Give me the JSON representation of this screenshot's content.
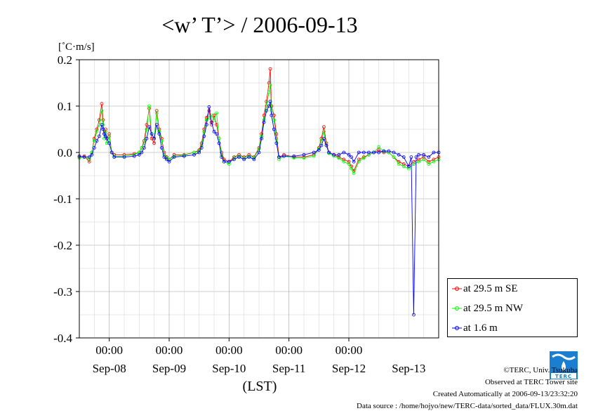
{
  "chart_data": {
    "type": "line",
    "title": "<w’ T’> / 2006-09-13",
    "ylabel": "[˚C·m/s]",
    "xlabel": "(LST)",
    "ylim": [
      -0.4,
      0.2
    ],
    "yticks": [
      -0.4,
      -0.3,
      -0.2,
      -0.1,
      0.0,
      0.1,
      0.2
    ],
    "ytick_labels": [
      "-0.4",
      "-0.3",
      "-0.2",
      "-0.1",
      "0.0",
      "0.1",
      "0.2"
    ],
    "xlim": [
      0,
      144
    ],
    "x_units": "hours since 2006-09-07 12:00 LST",
    "xticks": [
      12,
      36,
      60,
      84,
      108
    ],
    "xtick_labels": [
      "00:00",
      "00:00",
      "00:00",
      "00:00",
      "00:00"
    ],
    "date_labels": [
      {
        "x": 12,
        "label": "Sep-08"
      },
      {
        "x": 36,
        "label": "Sep-09"
      },
      {
        "x": 60,
        "label": "Sep-10"
      },
      {
        "x": 84,
        "label": "Sep-11"
      },
      {
        "x": 108,
        "label": "Sep-12"
      },
      {
        "x": 132,
        "label": "Sep-13"
      }
    ],
    "grid": true,
    "legend_position": "right-bottom",
    "series": [
      {
        "name": "at 29.5 m SE",
        "color": "#ff0000",
        "points": [
          [
            0,
            -0.01
          ],
          [
            2,
            -0.008
          ],
          [
            4,
            -0.02
          ],
          [
            5,
            0.0
          ],
          [
            6,
            0.03
          ],
          [
            7,
            0.05
          ],
          [
            8,
            0.07
          ],
          [
            9,
            0.105
          ],
          [
            9.5,
            0.07
          ],
          [
            10,
            0.04
          ],
          [
            10.5,
            0.05
          ],
          [
            11,
            0.03
          ],
          [
            12,
            0.04
          ],
          [
            13,
            0.0
          ],
          [
            14,
            -0.005
          ],
          [
            18,
            -0.005
          ],
          [
            22,
            -0.003
          ],
          [
            24,
            0.0
          ],
          [
            25,
            0.01
          ],
          [
            26,
            0.025
          ],
          [
            27,
            0.06
          ],
          [
            28,
            0.095
          ],
          [
            29,
            0.03
          ],
          [
            30,
            0.02
          ],
          [
            31,
            0.09
          ],
          [
            32,
            0.05
          ],
          [
            33,
            0.03
          ],
          [
            34,
            0.0
          ],
          [
            35,
            -0.01
          ],
          [
            36,
            -0.015
          ],
          [
            38,
            -0.005
          ],
          [
            42,
            -0.005
          ],
          [
            46,
            0.0
          ],
          [
            48,
            0.005
          ],
          [
            49,
            0.02
          ],
          [
            50,
            0.05
          ],
          [
            51,
            0.075
          ],
          [
            52,
            0.09
          ],
          [
            53,
            0.06
          ],
          [
            54,
            0.08
          ],
          [
            55,
            0.06
          ],
          [
            56,
            0.03
          ],
          [
            57,
            0.0
          ],
          [
            58,
            -0.015
          ],
          [
            60,
            -0.02
          ],
          [
            62,
            -0.01
          ],
          [
            64,
            -0.005
          ],
          [
            66,
            -0.01
          ],
          [
            68,
            -0.005
          ],
          [
            70,
            -0.01
          ],
          [
            72,
            0.01
          ],
          [
            73,
            0.04
          ],
          [
            74,
            0.08
          ],
          [
            75,
            0.11
          ],
          [
            76,
            0.15
          ],
          [
            76.5,
            0.18
          ],
          [
            77,
            0.1
          ],
          [
            78,
            0.08
          ],
          [
            79,
            0.04
          ],
          [
            80,
            -0.01
          ],
          [
            82,
            -0.005
          ],
          [
            86,
            -0.01
          ],
          [
            90,
            -0.01
          ],
          [
            94,
            -0.005
          ],
          [
            96,
            0.01
          ],
          [
            97,
            0.03
          ],
          [
            98,
            0.055
          ],
          [
            99,
            0.02
          ],
          [
            100,
            0.0
          ],
          [
            102,
            -0.005
          ],
          [
            104,
            -0.01
          ],
          [
            106,
            -0.015
          ],
          [
            108,
            -0.02
          ],
          [
            109,
            -0.03
          ],
          [
            110,
            -0.04
          ],
          [
            112,
            -0.015
          ],
          [
            114,
            -0.01
          ],
          [
            116,
            -0.005
          ],
          [
            118,
            0.0
          ],
          [
            120,
            0.005
          ],
          [
            122,
            0.0
          ],
          [
            124,
            0.0
          ],
          [
            126,
            -0.01
          ],
          [
            128,
            -0.02
          ],
          [
            130,
            -0.025
          ],
          [
            132,
            -0.03
          ],
          [
            134,
            -0.02
          ],
          [
            136,
            -0.015
          ],
          [
            138,
            -0.01
          ],
          [
            140,
            -0.02
          ],
          [
            142,
            -0.015
          ],
          [
            144,
            -0.01
          ]
        ]
      },
      {
        "name": "at 29.5 m NW",
        "color": "#00ff00",
        "points": [
          [
            0,
            -0.012
          ],
          [
            2,
            -0.01
          ],
          [
            4,
            -0.015
          ],
          [
            5,
            0.0
          ],
          [
            6,
            0.025
          ],
          [
            7,
            0.045
          ],
          [
            8,
            0.06
          ],
          [
            9,
            0.09
          ],
          [
            9.5,
            0.06
          ],
          [
            10,
            0.03
          ],
          [
            10.5,
            0.045
          ],
          [
            11,
            0.02
          ],
          [
            12,
            0.035
          ],
          [
            13,
            0.0
          ],
          [
            14,
            -0.008
          ],
          [
            18,
            -0.008
          ],
          [
            22,
            -0.005
          ],
          [
            24,
            0.0
          ],
          [
            25,
            0.01
          ],
          [
            26,
            0.02
          ],
          [
            27,
            0.05
          ],
          [
            28,
            0.1
          ],
          [
            29,
            0.04
          ],
          [
            30,
            0.03
          ],
          [
            31,
            0.085
          ],
          [
            32,
            0.045
          ],
          [
            33,
            0.025
          ],
          [
            34,
            -0.005
          ],
          [
            35,
            -0.012
          ],
          [
            36,
            -0.015
          ],
          [
            38,
            -0.008
          ],
          [
            42,
            -0.006
          ],
          [
            46,
            0.0
          ],
          [
            48,
            0.003
          ],
          [
            49,
            0.015
          ],
          [
            50,
            0.045
          ],
          [
            51,
            0.07
          ],
          [
            52,
            0.075
          ],
          [
            53,
            0.08
          ],
          [
            54,
            0.07
          ],
          [
            55,
            0.085
          ],
          [
            56,
            0.03
          ],
          [
            57,
            -0.005
          ],
          [
            58,
            -0.02
          ],
          [
            60,
            -0.025
          ],
          [
            62,
            -0.012
          ],
          [
            64,
            -0.008
          ],
          [
            66,
            -0.012
          ],
          [
            68,
            -0.008
          ],
          [
            70,
            -0.012
          ],
          [
            72,
            0.008
          ],
          [
            73,
            0.035
          ],
          [
            74,
            0.07
          ],
          [
            75,
            0.1
          ],
          [
            76,
            0.13
          ],
          [
            76.5,
            0.145
          ],
          [
            77,
            0.09
          ],
          [
            78,
            0.07
          ],
          [
            79,
            0.03
          ],
          [
            80,
            -0.015
          ],
          [
            82,
            -0.008
          ],
          [
            86,
            -0.012
          ],
          [
            90,
            -0.012
          ],
          [
            94,
            -0.008
          ],
          [
            96,
            0.008
          ],
          [
            97,
            0.025
          ],
          [
            98,
            0.045
          ],
          [
            99,
            0.015
          ],
          [
            100,
            -0.002
          ],
          [
            102,
            -0.008
          ],
          [
            104,
            -0.012
          ],
          [
            106,
            -0.02
          ],
          [
            108,
            -0.025
          ],
          [
            109,
            -0.035
          ],
          [
            110,
            -0.045
          ],
          [
            112,
            -0.02
          ],
          [
            114,
            -0.012
          ],
          [
            116,
            -0.005
          ],
          [
            118,
            0.0
          ],
          [
            120,
            0.012
          ],
          [
            122,
            0.002
          ],
          [
            124,
            0.0
          ],
          [
            126,
            -0.01
          ],
          [
            128,
            -0.025
          ],
          [
            130,
            -0.03
          ],
          [
            132,
            -0.035
          ],
          [
            134,
            -0.025
          ],
          [
            136,
            -0.02
          ],
          [
            138,
            -0.015
          ],
          [
            140,
            -0.025
          ],
          [
            142,
            -0.02
          ],
          [
            144,
            -0.015
          ]
        ]
      },
      {
        "name": "at 1.6 m",
        "color": "#0000ff",
        "points": [
          [
            0,
            -0.008
          ],
          [
            2,
            -0.01
          ],
          [
            4,
            -0.01
          ],
          [
            5,
            -0.005
          ],
          [
            6,
            0.01
          ],
          [
            7,
            0.025
          ],
          [
            8,
            0.035
          ],
          [
            9,
            0.06
          ],
          [
            9.5,
            0.05
          ],
          [
            10,
            0.04
          ],
          [
            10.5,
            0.035
          ],
          [
            11,
            0.03
          ],
          [
            12,
            0.02
          ],
          [
            13,
            0.0
          ],
          [
            14,
            -0.01
          ],
          [
            18,
            -0.01
          ],
          [
            22,
            -0.008
          ],
          [
            24,
            -0.005
          ],
          [
            25,
            0.0
          ],
          [
            26,
            0.01
          ],
          [
            27,
            0.03
          ],
          [
            28,
            0.055
          ],
          [
            29,
            0.04
          ],
          [
            30,
            0.03
          ],
          [
            31,
            0.06
          ],
          [
            32,
            0.04
          ],
          [
            33,
            0.01
          ],
          [
            34,
            -0.01
          ],
          [
            35,
            -0.015
          ],
          [
            36,
            -0.02
          ],
          [
            38,
            -0.01
          ],
          [
            42,
            -0.008
          ],
          [
            46,
            -0.005
          ],
          [
            48,
            0.0
          ],
          [
            49,
            0.01
          ],
          [
            50,
            0.035
          ],
          [
            51,
            0.06
          ],
          [
            52,
            0.098
          ],
          [
            53,
            0.065
          ],
          [
            54,
            0.045
          ],
          [
            55,
            0.04
          ],
          [
            56,
            0.02
          ],
          [
            57,
            -0.01
          ],
          [
            58,
            -0.02
          ],
          [
            60,
            -0.02
          ],
          [
            62,
            -0.015
          ],
          [
            64,
            -0.01
          ],
          [
            66,
            -0.015
          ],
          [
            68,
            -0.01
          ],
          [
            70,
            -0.015
          ],
          [
            72,
            0.0
          ],
          [
            73,
            0.03
          ],
          [
            74,
            0.065
          ],
          [
            75,
            0.09
          ],
          [
            76,
            0.1
          ],
          [
            76.5,
            0.11
          ],
          [
            77,
            0.08
          ],
          [
            78,
            0.05
          ],
          [
            79,
            0.02
          ],
          [
            80,
            -0.01
          ],
          [
            82,
            -0.008
          ],
          [
            86,
            -0.008
          ],
          [
            90,
            -0.005
          ],
          [
            94,
            0.0
          ],
          [
            96,
            0.005
          ],
          [
            97,
            0.015
          ],
          [
            98,
            0.03
          ],
          [
            99,
            0.015
          ],
          [
            100,
            0.0
          ],
          [
            102,
            -0.005
          ],
          [
            104,
            -0.005
          ],
          [
            106,
            0.0
          ],
          [
            108,
            -0.005
          ],
          [
            109,
            -0.01
          ],
          [
            110,
            -0.02
          ],
          [
            112,
            0.0
          ],
          [
            114,
            0.0
          ],
          [
            116,
            0.0
          ],
          [
            118,
            0.0
          ],
          [
            120,
            0.0
          ],
          [
            122,
            0.003
          ],
          [
            124,
            0.003
          ],
          [
            126,
            0.0
          ],
          [
            128,
            -0.005
          ],
          [
            130,
            -0.01
          ],
          [
            132,
            -0.03
          ],
          [
            133,
            -0.01
          ],
          [
            134,
            -0.35
          ],
          [
            135,
            -0.01
          ],
          [
            136,
            -0.005
          ],
          [
            138,
            -0.005
          ],
          [
            140,
            -0.01
          ],
          [
            142,
            0.0
          ],
          [
            144,
            0.0
          ]
        ]
      }
    ]
  },
  "footer": {
    "copyright": "©TERC, Univ. Tsukuba",
    "observed": "Observed at TERC Tower site",
    "created": "Created Automatically at 2006-09-13/23:32:20",
    "source": "Data source : /home/hojyo/new/TERC-data/sorted_data/FLUX.30m.dat"
  },
  "logo": {
    "text": "TERC",
    "color": "#1a7fd0"
  }
}
